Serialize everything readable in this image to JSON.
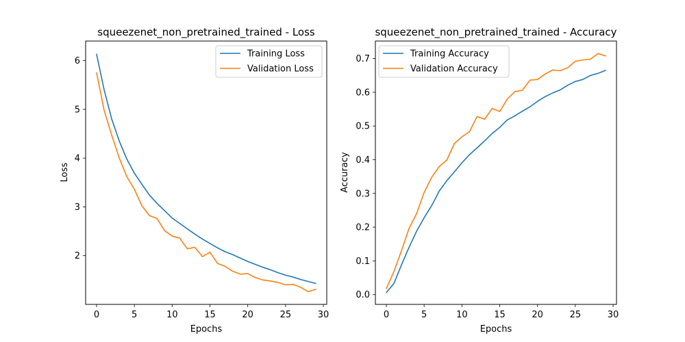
{
  "chart_data": [
    {
      "type": "line",
      "title": "squeezenet_non_pretrained_trained - Loss",
      "xlabel": "Epochs",
      "ylabel": "Loss",
      "xlim": [
        -1.45,
        30.45
      ],
      "ylim": [
        1.0,
        6.4
      ],
      "xticks": [
        0,
        5,
        10,
        15,
        20,
        25,
        30
      ],
      "yticks": [
        2,
        3,
        4,
        5,
        6
      ],
      "legend": "top-right",
      "grid": false,
      "x": [
        0,
        1,
        2,
        3,
        4,
        5,
        6,
        7,
        8,
        9,
        10,
        11,
        12,
        13,
        14,
        15,
        16,
        17,
        18,
        19,
        20,
        21,
        22,
        23,
        24,
        25,
        26,
        27,
        28,
        29
      ],
      "series": [
        {
          "name": "Training Loss",
          "color": "#1f77b4",
          "values": [
            6.13,
            5.4,
            4.8,
            4.35,
            3.98,
            3.69,
            3.46,
            3.24,
            3.07,
            2.92,
            2.77,
            2.66,
            2.55,
            2.44,
            2.34,
            2.25,
            2.16,
            2.08,
            2.02,
            1.95,
            1.88,
            1.82,
            1.76,
            1.71,
            1.65,
            1.6,
            1.56,
            1.51,
            1.47,
            1.43
          ]
        },
        {
          "name": "Validation Loss",
          "color": "#ff7f0e",
          "values": [
            5.75,
            4.98,
            4.47,
            4.0,
            3.62,
            3.36,
            3.02,
            2.82,
            2.76,
            2.51,
            2.4,
            2.36,
            2.14,
            2.17,
            1.98,
            2.07,
            1.84,
            1.78,
            1.68,
            1.62,
            1.63,
            1.55,
            1.5,
            1.48,
            1.45,
            1.4,
            1.41,
            1.35,
            1.26,
            1.31
          ]
        }
      ]
    },
    {
      "type": "line",
      "title": "squeezenet_non_pretrained_trained - Accuracy",
      "xlabel": "Epochs",
      "ylabel": "Accuracy",
      "xlim": [
        -1.45,
        30.45
      ],
      "ylim": [
        -0.029,
        0.752
      ],
      "xticks": [
        0,
        5,
        10,
        15,
        20,
        25,
        30
      ],
      "yticks": [
        0.0,
        0.1,
        0.2,
        0.3,
        0.4,
        0.5,
        0.6,
        0.7
      ],
      "legend": "top-left",
      "grid": false,
      "x": [
        0,
        1,
        2,
        3,
        4,
        5,
        6,
        7,
        8,
        9,
        10,
        11,
        12,
        13,
        14,
        15,
        16,
        17,
        18,
        19,
        20,
        21,
        22,
        23,
        24,
        25,
        26,
        27,
        28,
        29
      ],
      "series": [
        {
          "name": "Training Accuracy",
          "color": "#1f77b4",
          "values": [
            0.006,
            0.033,
            0.088,
            0.14,
            0.188,
            0.228,
            0.264,
            0.307,
            0.338,
            0.364,
            0.391,
            0.415,
            0.435,
            0.456,
            0.478,
            0.496,
            0.518,
            0.53,
            0.544,
            0.557,
            0.573,
            0.587,
            0.598,
            0.607,
            0.621,
            0.632,
            0.638,
            0.65,
            0.656,
            0.665
          ]
        },
        {
          "name": "Validation Accuracy",
          "color": "#ff7f0e",
          "values": [
            0.018,
            0.068,
            0.13,
            0.196,
            0.24,
            0.303,
            0.348,
            0.38,
            0.399,
            0.448,
            0.468,
            0.483,
            0.528,
            0.52,
            0.552,
            0.543,
            0.58,
            0.602,
            0.606,
            0.636,
            0.638,
            0.654,
            0.666,
            0.664,
            0.673,
            0.692,
            0.696,
            0.698,
            0.715,
            0.708
          ]
        }
      ]
    }
  ]
}
